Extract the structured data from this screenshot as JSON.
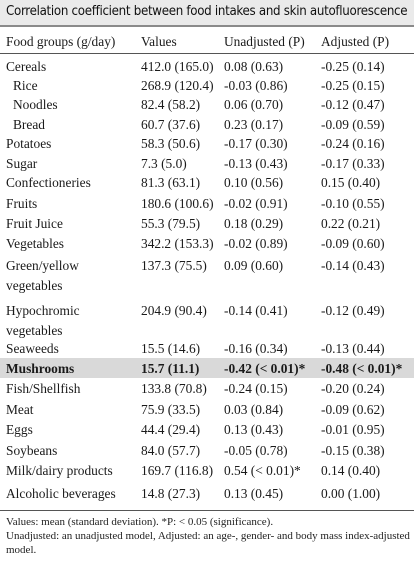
{
  "title": "Correlation coefficient between food intakes and skin autofluorescence",
  "columns": {
    "food": "Food groups (g/day)",
    "values": "Values",
    "unadjusted": "Unadjusted (P)",
    "adjusted": "Adjusted (P)"
  },
  "rows": [
    {
      "food": "Cereals",
      "values": "412.0 (165.0)",
      "unadjusted": "0.08 (0.63)",
      "adjusted": "-0.25 (0.14)"
    },
    {
      "food": "Rice",
      "values": "268.9 (120.4)",
      "unadjusted": "-0.03 (0.86)",
      "adjusted": "-0.25 (0.15)"
    },
    {
      "food": "Noodles",
      "values": "82.4 (58.2)",
      "unadjusted": "0.06 (0.70)",
      "adjusted": "-0.12 (0.47)"
    },
    {
      "food": "Bread",
      "values": "60.7 (37.6)",
      "unadjusted": "0.23 (0.17)",
      "adjusted": "-0.09 (0.59)"
    },
    {
      "food": "Potatoes",
      "values": "58.3 (50.6)",
      "unadjusted": "-0.17 (0.30)",
      "adjusted": "-0.24 (0.16)"
    },
    {
      "food": "Sugar",
      "values": "7.3 (5.0)",
      "unadjusted": "-0.13 (0.43)",
      "adjusted": "-0.17 (0.33)"
    },
    {
      "food": "Confectioneries",
      "values": "81.3 (63.1)",
      "unadjusted": "0.10 (0.56)",
      "adjusted": "0.15 (0.40)"
    },
    {
      "food": "Fruits",
      "values": "180.6 (100.6)",
      "unadjusted": "-0.02 (0.91)",
      "adjusted": "-0.10 (0.55)"
    },
    {
      "food": "Fruit Juice",
      "values": "55.3 (79.5)",
      "unadjusted": "0.18 (0.29)",
      "adjusted": "0.22 (0.21)"
    },
    {
      "food": "Vegetables",
      "values": "342.2 (153.3)",
      "unadjusted": "-0.02 (0.89)",
      "adjusted": "-0.09 (0.60)"
    },
    {
      "food": "Green/yellow",
      "food2": "vegetables",
      "values": "137.3 (75.5)",
      "unadjusted": "0.09 (0.60)",
      "adjusted": "-0.14 (0.43)"
    },
    {
      "food": "Hypochromic",
      "food2": "vegetables",
      "values": "204.9 (90.4)",
      "unadjusted": "-0.14 (0.41)",
      "adjusted": "-0.12 (0.49)"
    },
    {
      "food": "Seaweeds",
      "values": "15.5 (14.6)",
      "unadjusted": "-0.16 (0.34)",
      "adjusted": "-0.13 (0.44)"
    },
    {
      "food": "Mushrooms",
      "values": "15.7 (11.1)",
      "unadjusted": "-0.42 (< 0.01)*",
      "adjusted": "-0.48 (< 0.01)*"
    },
    {
      "food": "Fish/Shellfish",
      "values": "133.8 (70.8)",
      "unadjusted": "-0.24 (0.15)",
      "adjusted": "-0.20 (0.24)"
    },
    {
      "food": "Meat",
      "values": "75.9 (33.5)",
      "unadjusted": "0.03 (0.84)",
      "adjusted": "-0.09 (0.62)"
    },
    {
      "food": "Eggs",
      "values": "44.4 (29.4)",
      "unadjusted": "0.13 (0.43)",
      "adjusted": "-0.01 (0.95)"
    },
    {
      "food": "Soybeans",
      "values": "84.0 (57.7)",
      "unadjusted": "-0.05 (0.78)",
      "adjusted": "-0.15 (0.38)"
    },
    {
      "food": "Milk/dairy products",
      "values": "169.7 (116.8)",
      "unadjusted": "0.54 (< 0.01)*",
      "adjusted": "0.14 (0.40)"
    },
    {
      "food": "Alcoholic beverages",
      "values": "14.8 (27.3)",
      "unadjusted": "0.13 (0.45)",
      "adjusted": "0.00 (1.00)"
    }
  ],
  "notes": {
    "line1": "Values: mean (standard deviation). *P: < 0.05 (significance).",
    "line2": "Unadjusted: an unadjusted model, Adjusted: an age-, gender- and body mass index-adjusted model."
  },
  "colors": {
    "title_bg": "#eaeaea",
    "highlight_bg": "#d9d9d9",
    "rule": "#555555"
  }
}
